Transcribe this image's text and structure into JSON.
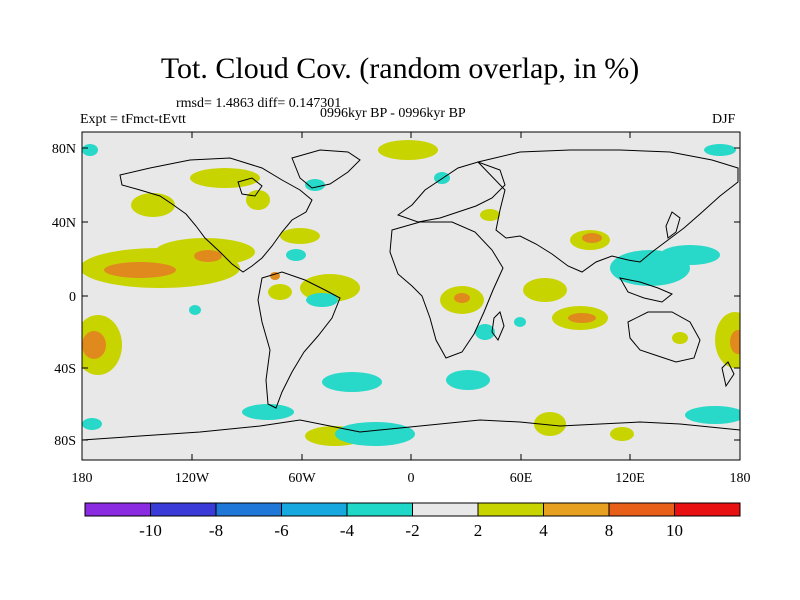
{
  "title": "Tot. Cloud Cov. (random overlap, in %)",
  "stats": "rmsd= 1.4863 diff= 0.147301",
  "experiment": "Expt = tFmct-tEvtt",
  "period": "0996kyr BP - 0996kyr BP",
  "season": "DJF",
  "lat_ticks": [
    "80N",
    "40N",
    "0",
    "40S",
    "80S"
  ],
  "lon_ticks": [
    "180",
    "120W",
    "60W",
    "0",
    "60E",
    "120E",
    "180"
  ],
  "colorbar": {
    "colors": [
      "#8a2be2",
      "#3a3ad8",
      "#1f78d8",
      "#18a8e0",
      "#20d8c8",
      "#e8e8e8",
      "#c8d400",
      "#e8a020",
      "#e86018",
      "#e81010"
    ],
    "labels": [
      "-10",
      "-8",
      "-6",
      "-4",
      "-2",
      "2",
      "4",
      "8",
      "10"
    ]
  },
  "colors": {
    "background": "#e8e8e8",
    "pos_2_4": "#c8d400",
    "pos_4_8": "#e08a1e",
    "neg_2_4": "#28d8c8"
  }
}
